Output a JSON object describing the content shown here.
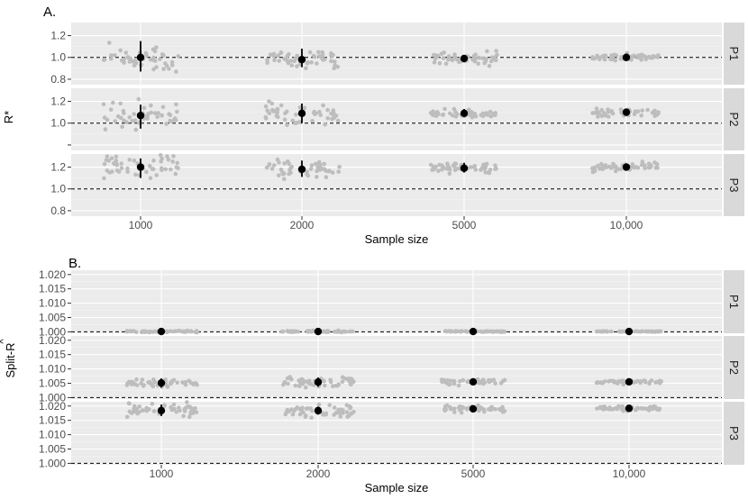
{
  "chart_data": [
    {
      "panel_label": "A.",
      "type": "scatter",
      "ylabel": "R*",
      "xlabel": "Sample size",
      "categories": [
        "1000",
        "2000",
        "5000",
        "10,000"
      ],
      "ylim": [
        0.75,
        1.32
      ],
      "yticks": [
        0.8,
        1.0,
        1.2
      ],
      "ytick_labels": [
        "0.8",
        "1.0",
        "1.2"
      ],
      "ytick_labels_rows": [
        [
          "0.8",
          "1.0",
          "1.2"
        ],
        [
          "1.0",
          "1.2"
        ],
        [
          "0.8",
          "1.0",
          "1.2"
        ]
      ],
      "reference_line": 1.0,
      "facets": [
        {
          "label": "P1",
          "means": [
            1.0,
            0.98,
            0.99,
            1.0
          ],
          "intervals": [
            [
              0.87,
              1.15
            ],
            [
              0.91,
              1.08
            ],
            [
              0.96,
              1.02
            ],
            [
              0.98,
              1.02
            ]
          ],
          "points_range": [
            [
              0.84,
              1.17
            ],
            [
              0.9,
              1.13
            ],
            [
              0.92,
              1.06
            ],
            [
              0.96,
              1.04
            ]
          ]
        },
        {
          "label": "P2",
          "means": [
            1.07,
            1.09,
            1.09,
            1.1
          ],
          "intervals": [
            [
              0.95,
              1.17
            ],
            [
              1.0,
              1.18
            ],
            [
              1.06,
              1.13
            ],
            [
              1.08,
              1.13
            ]
          ],
          "points_range": [
            [
              0.92,
              1.22
            ],
            [
              0.98,
              1.2
            ],
            [
              1.05,
              1.15
            ],
            [
              1.06,
              1.14
            ]
          ]
        },
        {
          "label": "P3",
          "means": [
            1.2,
            1.18,
            1.19,
            1.2
          ],
          "intervals": [
            [
              1.1,
              1.28
            ],
            [
              1.11,
              1.26
            ],
            [
              1.15,
              1.24
            ],
            [
              1.17,
              1.23
            ]
          ],
          "points_range": [
            [
              1.04,
              1.32
            ],
            [
              1.05,
              1.27
            ],
            [
              1.12,
              1.25
            ],
            [
              1.15,
              1.25
            ]
          ]
        }
      ]
    },
    {
      "panel_label": "B.",
      "type": "scatter",
      "ylabel": "Split-R",
      "ylabel_hat": "^",
      "xlabel": "Sample size",
      "categories": [
        "1000",
        "2000",
        "5000",
        "10,000"
      ],
      "ylim": [
        0.9995,
        1.0215
      ],
      "yticks": [
        1.0,
        1.005,
        1.01,
        1.015,
        1.02
      ],
      "ytick_labels": [
        "1.000",
        "1.005",
        "1.010",
        "1.015",
        "1.020"
      ],
      "reference_line": 1.0,
      "facets": [
        {
          "label": "P1",
          "means": [
            1.0001,
            1.0001,
            1.0001,
            1.0001
          ],
          "intervals": [
            [
              0.9999,
              1.0004
            ],
            [
              0.9999,
              1.0003
            ],
            [
              1.0,
              1.0002
            ],
            [
              1.0,
              1.0002
            ]
          ],
          "points_range": [
            [
              0.9998,
              1.0006
            ],
            [
              0.9998,
              1.0005
            ],
            [
              0.9999,
              1.0003
            ],
            [
              0.9999,
              1.0002
            ]
          ]
        },
        {
          "label": "P2",
          "means": [
            1.0051,
            1.0054,
            1.0055,
            1.0055
          ],
          "intervals": [
            [
              1.0035,
              1.0067
            ],
            [
              1.0038,
              1.007
            ],
            [
              1.0048,
              1.0062
            ],
            [
              1.005,
              1.006
            ]
          ],
          "points_range": [
            [
              1.0035,
              1.0072
            ],
            [
              1.0035,
              1.0085
            ],
            [
              1.0042,
              1.0068
            ],
            [
              1.0046,
              1.0062
            ]
          ]
        },
        {
          "label": "P3",
          "means": [
            1.0184,
            1.0184,
            1.019,
            1.0192
          ],
          "intervals": [
            [
              1.0165,
              1.0205
            ],
            [
              1.017,
              1.0198
            ],
            [
              1.018,
              1.0198
            ],
            [
              1.0186,
              1.0198
            ]
          ],
          "points_range": [
            [
              1.0162,
              1.0225
            ],
            [
              1.0155,
              1.021
            ],
            [
              1.0175,
              1.0205
            ],
            [
              1.0182,
              1.0202
            ]
          ]
        }
      ]
    }
  ]
}
